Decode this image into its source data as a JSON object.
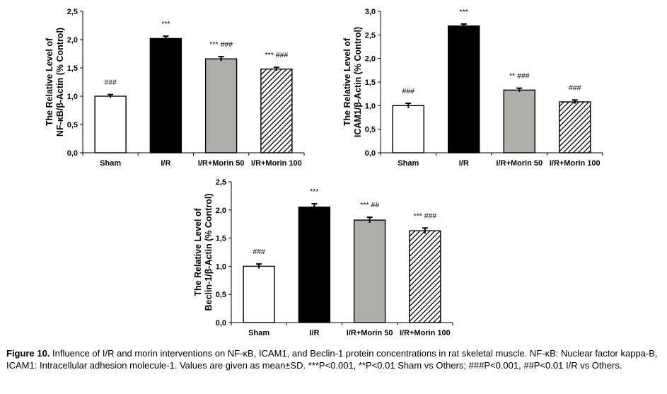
{
  "caption": {
    "label": "Figure 10.",
    "text": " Influence of I/R and morin interventions on NF-κB, ICAM1, and Beclin-1 protein concentrations in rat skeletal muscle. NF-κB: Nuclear factor kappa-B, ICAM1: Intracellular adhesion molecule-1. Values are given as mean±SD. ***P<0.001, **P<0.01 Sham vs Others; ###P<0.001, ##P<0.01 I/R vs Others."
  },
  "colors": {
    "sham": "#ffffff",
    "ir": "#000000",
    "morin50": "#b0aeab",
    "morin100": "hatch"
  },
  "chart_data": [
    {
      "type": "bar",
      "ylabel_lines": [
        "The Relative Level of",
        "NF-κB/β-Actin (% Control)"
      ],
      "categories": [
        "Sham",
        "I/R",
        "I/R+Morin 50",
        "I/R+Morin 100"
      ],
      "values": [
        1.0,
        2.02,
        1.66,
        1.48
      ],
      "errors": [
        0.03,
        0.04,
        0.04,
        0.03
      ],
      "annotations": [
        "###",
        "***",
        "*** ###",
        "*** ###"
      ],
      "ylim": [
        0,
        2.5
      ],
      "yticks": [
        "0,0",
        "0,5",
        "1,0",
        "1,5",
        "2,0",
        "2,5"
      ],
      "ytick_values": [
        0,
        0.5,
        1.0,
        1.5,
        2.0,
        2.5
      ]
    },
    {
      "type": "bar",
      "ylabel_lines": [
        "The Relative Level of",
        "ICAM1/β-Actin (% Control)"
      ],
      "categories": [
        "Sham",
        "I/R",
        "I/R+Morin 50",
        "I/R+Morin 100"
      ],
      "values": [
        1.0,
        2.69,
        1.33,
        1.08
      ],
      "errors": [
        0.05,
        0.04,
        0.04,
        0.04
      ],
      "annotations": [
        "###",
        "***",
        "** ###",
        "###"
      ],
      "ylim": [
        0,
        3.0
      ],
      "yticks": [
        "0,0",
        "0,5",
        "1,0",
        "1,5",
        "2,0",
        "2,5",
        "3,0"
      ],
      "ytick_values": [
        0,
        0.5,
        1.0,
        1.5,
        2.0,
        2.5,
        3.0
      ]
    },
    {
      "type": "bar",
      "ylabel_lines": [
        "The Relative Level of",
        "Beclin-1/β-Actin (% Control)"
      ],
      "categories": [
        "Sham",
        "I/R",
        "I/R+Morin 50",
        "I/R+Morin 100"
      ],
      "values": [
        1.0,
        2.05,
        1.82,
        1.63
      ],
      "errors": [
        0.04,
        0.06,
        0.05,
        0.05
      ],
      "annotations": [
        "###",
        "***",
        "*** ##",
        "*** ###"
      ],
      "ylim": [
        0,
        2.5
      ],
      "yticks": [
        "0,0",
        "0,5",
        "1,0",
        "1,5",
        "2,0",
        "2,5"
      ],
      "ytick_values": [
        0,
        0.5,
        1.0,
        1.5,
        2.0,
        2.5
      ]
    }
  ]
}
